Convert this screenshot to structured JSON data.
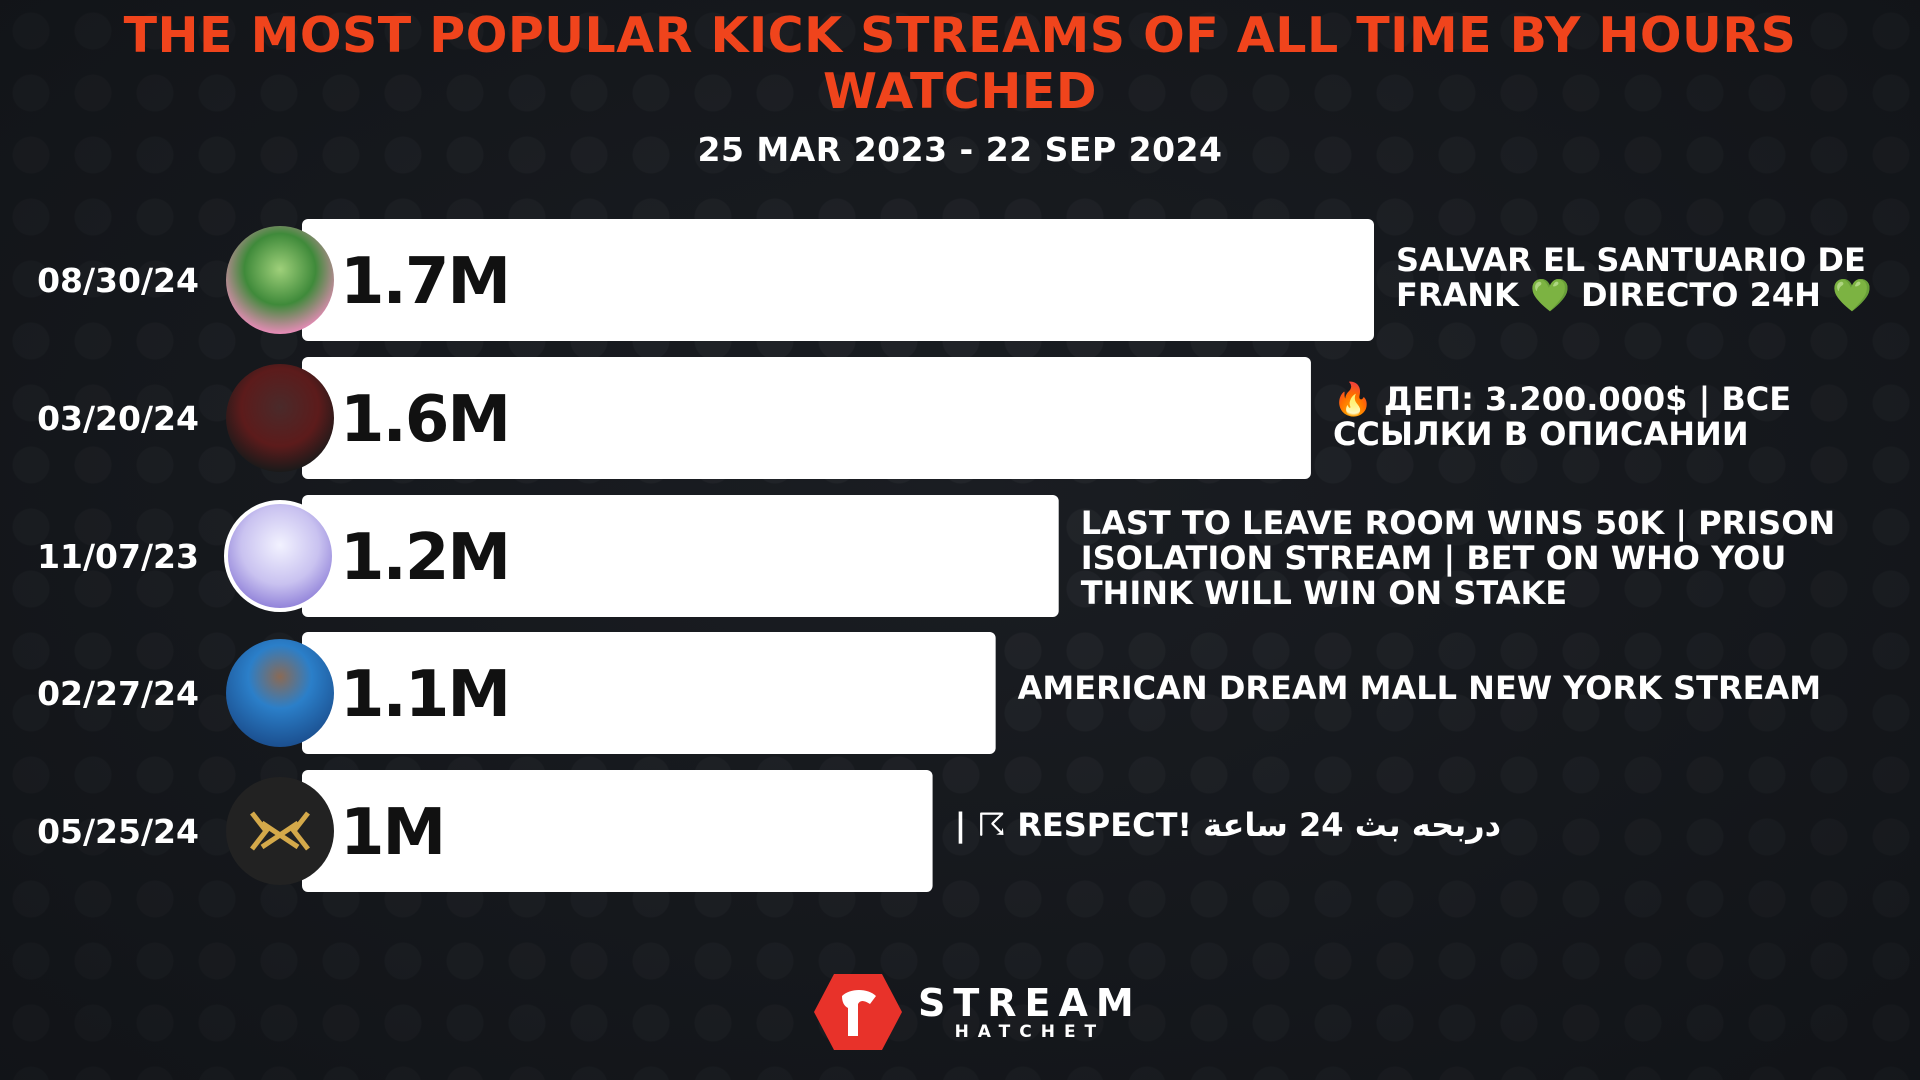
{
  "chart_data": {
    "type": "bar",
    "orientation": "horizontal",
    "title": "THE MOST POPULAR KICK STREAMS OF ALL TIME BY HOURS WATCHED",
    "subtitle": "25 MAR 2023 - 22 SEP 2024",
    "categories": [
      "08/30/24",
      "03/20/24",
      "11/07/23",
      "02/27/24",
      "05/25/24"
    ],
    "values": [
      1.7,
      1.6,
      1.2,
      1.1,
      1.0
    ],
    "value_labels": [
      "1.7M",
      "1.6M",
      "1.2M",
      "1.1M",
      "1M"
    ],
    "stream_titles": [
      "SALVAR EL SANTUARIO DE FRANK 💚 DIRECTO 24H 💚",
      "🔥 ДЕП: 3.200.000$ | ВСЕ ССЫЛКИ В ОПИСАНИИ",
      "LAST TO LEAVE ROOM WINS 50K | PRISON ISOLATION STREAM | BET ON WHO YOU THINK WILL WIN ON STAKE",
      "AMERICAN DREAM MALL NEW YORK STREAM",
      "| ☈ RESPECT! دربحه بث 24 ساعة"
    ],
    "unit": "M hours watched",
    "xlim": [
      0,
      1.7
    ],
    "bar_color": "#ffffff",
    "title_color": "#f0441c",
    "background_color": "#1a1d22"
  },
  "branding": {
    "word1": "STREAM",
    "word2": "HATCHET",
    "logo_color": "#e8322a"
  }
}
